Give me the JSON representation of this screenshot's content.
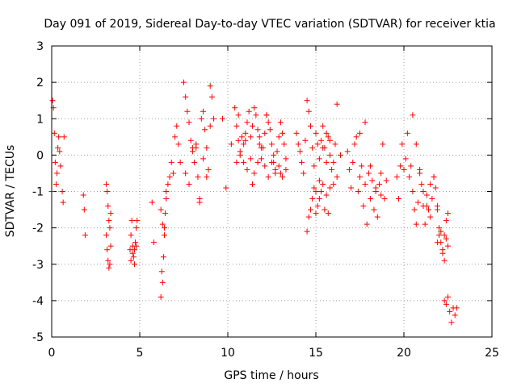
{
  "chart_data": {
    "type": "scatter",
    "title": "Day 091 of 2019, Sidereal Day-to-day VTEC variation (SDTVAR) for receiver ktia",
    "xlabel": "GPS time / hours",
    "ylabel": "SDTVAR / TECUs",
    "xlim": [
      0,
      25
    ],
    "ylim": [
      -5,
      3
    ],
    "xticks": [
      "0",
      "5",
      "10",
      "15",
      "20",
      "25"
    ],
    "yticks": [
      "3",
      "2",
      "1",
      "0",
      "-1",
      "-2",
      "-3",
      "-4",
      "-5"
    ],
    "grid": true,
    "marker": "+",
    "series": [
      {
        "name": "SDTVAR",
        "color": "#ff0000",
        "x": [
          0.0,
          0.05,
          0.1,
          0.15,
          0.2,
          0.25,
          0.3,
          0.35,
          0.4,
          0.45,
          0.5,
          0.6,
          0.65,
          0.7,
          1.8,
          1.85,
          1.9,
          3.1,
          3.15,
          3.2,
          3.25,
          3.3,
          3.35,
          3.1,
          3.15,
          3.2,
          3.25,
          3.3,
          3.35,
          4.45,
          4.5,
          4.55,
          4.6,
          4.65,
          4.7,
          4.75,
          4.8,
          4.85,
          4.5,
          4.6,
          4.7,
          4.8,
          5.7,
          5.8,
          6.2,
          6.25,
          6.3,
          6.35,
          6.4,
          6.45,
          6.5,
          6.2,
          6.3,
          6.4,
          6.5,
          6.6,
          6.7,
          6.8,
          6.9,
          7.0,
          7.1,
          7.2,
          7.3,
          7.5,
          7.6,
          7.7,
          7.8,
          7.9,
          8.0,
          8.1,
          8.2,
          8.3,
          8.4,
          8.5,
          8.6,
          8.7,
          8.8,
          8.9,
          9.0,
          9.1,
          9.2,
          7.6,
          7.8,
          8.0,
          8.2,
          8.4,
          8.6,
          8.8,
          9.0,
          9.7,
          9.9,
          10.2,
          10.4,
          10.5,
          10.6,
          10.7,
          10.8,
          10.9,
          11.0,
          11.1,
          11.2,
          11.3,
          11.4,
          11.5,
          11.6,
          11.7,
          11.8,
          11.9,
          12.0,
          12.1,
          12.2,
          12.3,
          12.4,
          12.5,
          12.6,
          12.7,
          12.8,
          12.9,
          13.0,
          13.1,
          13.2,
          13.3,
          10.5,
          10.7,
          10.9,
          11.1,
          11.3,
          11.5,
          11.7,
          11.9,
          12.1,
          12.3,
          12.5,
          12.7,
          12.9,
          13.1,
          13.3,
          10.6,
          11.0,
          11.4,
          11.8,
          12.2,
          12.6,
          13.0,
          13.9,
          14.0,
          14.1,
          14.2,
          14.3,
          14.4,
          14.5,
          14.6,
          14.7,
          14.8,
          14.9,
          15.0,
          15.1,
          15.2,
          15.3,
          15.4,
          15.5,
          15.6,
          15.7,
          15.8,
          15.9,
          16.0,
          16.1,
          16.2,
          14.5,
          14.6,
          14.7,
          14.8,
          14.9,
          15.0,
          15.1,
          15.2,
          15.3,
          15.4,
          15.5,
          15.6,
          15.7,
          15.8,
          15.0,
          15.2,
          15.4,
          15.6,
          15.8,
          16.0,
          16.2,
          16.4,
          16.8,
          16.9,
          17.0,
          17.1,
          17.2,
          17.3,
          17.4,
          17.5,
          17.6,
          17.7,
          17.8,
          17.9,
          18.0,
          18.1,
          18.2,
          18.3,
          18.4,
          18.5,
          18.6,
          18.7,
          18.8,
          18.9,
          19.0,
          17.5,
          17.8,
          18.1,
          18.4,
          18.7,
          19.6,
          19.7,
          19.8,
          19.9,
          20.0,
          20.1,
          20.2,
          20.3,
          20.4,
          20.5,
          20.6,
          20.7,
          20.8,
          20.9,
          21.0,
          21.1,
          21.2,
          21.3,
          21.4,
          21.5,
          21.6,
          21.7,
          21.8,
          21.9,
          22.0,
          22.1,
          22.2,
          22.3,
          22.4,
          22.5,
          20.5,
          20.7,
          20.9,
          21.1,
          21.3,
          21.5,
          21.7,
          21.9,
          21.9,
          22.0,
          22.1,
          22.2,
          22.3,
          22.4,
          22.5,
          22.3,
          22.4,
          22.5,
          22.6,
          22.7,
          22.8,
          22.9,
          23.0
        ],
        "y": [
          -1.0,
          1.5,
          1.3,
          0.6,
          -0.2,
          -0.8,
          -0.5,
          0.2,
          0.5,
          0.1,
          -0.3,
          -1.0,
          -1.3,
          0.5,
          -1.1,
          -1.5,
          -2.2,
          -0.8,
          -1.0,
          -1.4,
          -1.8,
          -2.0,
          -1.6,
          -2.2,
          -2.6,
          -2.9,
          -3.1,
          -3.0,
          -2.5,
          -2.6,
          -2.2,
          -1.8,
          -2.5,
          -2.8,
          -3.0,
          -2.4,
          -2.0,
          -1.8,
          -2.9,
          -2.7,
          -2.6,
          -2.5,
          -1.3,
          -2.4,
          -3.9,
          -3.2,
          -3.5,
          -2.8,
          -2.2,
          -1.6,
          -1.2,
          -1.5,
          -1.9,
          -2.0,
          -1.0,
          -0.8,
          -0.6,
          -0.2,
          -0.5,
          0.5,
          0.8,
          0.3,
          -0.2,
          2.0,
          1.6,
          1.2,
          0.9,
          0.4,
          0.1,
          -0.2,
          0.2,
          -0.6,
          -1.2,
          1.0,
          1.2,
          0.7,
          0.2,
          -0.4,
          0.8,
          1.6,
          1.0,
          -0.5,
          -0.8,
          0.2,
          0.3,
          -1.3,
          -0.1,
          -0.6,
          1.9,
          1.0,
          -0.9,
          0.3,
          1.3,
          0.8,
          0.4,
          0.1,
          0.5,
          -0.2,
          0.6,
          0.9,
          1.2,
          0.5,
          0.8,
          1.3,
          1.1,
          0.7,
          0.3,
          -0.1,
          0.2,
          0.6,
          1.1,
          0.9,
          0.7,
          0.3,
          0.0,
          -0.4,
          0.1,
          0.5,
          0.9,
          0.6,
          0.3,
          -0.1,
          -0.2,
          0.0,
          0.3,
          -0.4,
          -0.1,
          -0.5,
          -0.2,
          0.2,
          -0.3,
          -0.6,
          -0.2,
          -0.5,
          -0.3,
          -0.6,
          -0.4,
          1.1,
          0.4,
          -0.8,
          0.5,
          1.1,
          -0.2,
          -0.5,
          0.6,
          0.3,
          0.1,
          -0.2,
          -0.5,
          0.4,
          1.5,
          1.2,
          0.8,
          0.2,
          -0.3,
          0.6,
          0.3,
          -0.1,
          0.4,
          0.8,
          0.2,
          -0.2,
          0.5,
          0.0,
          -0.4,
          -0.8,
          0.3,
          -0.6,
          -2.1,
          -1.7,
          -1.5,
          -1.2,
          -0.9,
          -1.6,
          -1.4,
          -1.2,
          -1.0,
          -0.8,
          -1.5,
          -1.1,
          -1.6,
          -0.9,
          -1.0,
          -0.7,
          0.2,
          0.6,
          0.4,
          -0.2,
          1.4,
          0.0,
          0.1,
          -0.4,
          -0.9,
          -0.2,
          0.3,
          0.5,
          -1.0,
          -0.6,
          -0.3,
          -1.4,
          -0.8,
          -1.9,
          -0.5,
          -1.2,
          -0.7,
          -1.5,
          -0.9,
          -1.7,
          -0.8,
          -1.1,
          0.3,
          -1.2,
          -0.7,
          0.6,
          0.9,
          -0.3,
          -1.0,
          -0.5,
          -0.6,
          -1.2,
          -0.3,
          0.3,
          -0.4,
          -0.1,
          0.6,
          -0.6,
          -0.3,
          -1.0,
          -1.5,
          -1.9,
          -1.3,
          -0.4,
          -0.8,
          -1.4,
          -1.9,
          -1.1,
          -1.5,
          -1.7,
          -1.2,
          -0.6,
          -0.9,
          -1.5,
          -2.0,
          -2.4,
          -2.7,
          -2.2,
          -1.8,
          -1.6,
          1.1,
          0.3,
          -0.5,
          -1.0,
          -1.4,
          -0.8,
          -0.6,
          -1.4,
          -2.4,
          -2.2,
          -2.1,
          -2.6,
          -2.9,
          -2.3,
          -2.5,
          -4.0,
          -4.1,
          -3.9,
          -4.3,
          -4.6,
          -4.2,
          -4.4,
          -4.2
        ]
      }
    ]
  }
}
